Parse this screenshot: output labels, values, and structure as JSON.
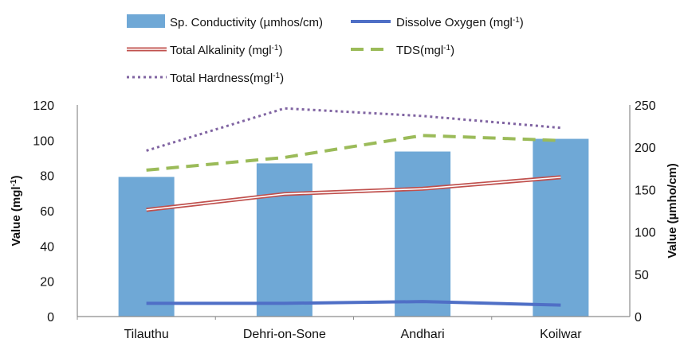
{
  "chart_data": {
    "type": "bar+line",
    "categories": [
      "Tilauthu",
      "Dehri-on-Sone",
      "Andhari",
      "Koilwar"
    ],
    "left_axis": {
      "label": "Value (mgl",
      "label_sup": "-1",
      "label_end": ")",
      "ylim": [
        0,
        120
      ],
      "ticks": [
        0,
        20,
        40,
        60,
        80,
        100,
        120
      ]
    },
    "right_axis": {
      "label": "Value (µmho/cm)",
      "ylim": [
        0,
        250
      ],
      "ticks": [
        0,
        50,
        100,
        150,
        200,
        250
      ]
    },
    "series": [
      {
        "name": "Sp. Conductivity (µmhos/cm)",
        "name_sup": "",
        "name_end": "",
        "type": "bar",
        "axis": "right",
        "color": "#6fa8d6",
        "values": [
          165,
          181,
          195,
          210
        ]
      },
      {
        "name": "Dissolve Oxygen (mgl",
        "name_sup": "-1",
        "name_end": ")",
        "type": "line",
        "axis": "left",
        "style": "solid",
        "color": "#4f6fc6",
        "values": [
          7.5,
          7.5,
          8.5,
          6.5
        ]
      },
      {
        "name": "Total Alkalinity  (mgl",
        "name_sup": "-1",
        "name_end": ")",
        "type": "line",
        "axis": "left",
        "style": "double",
        "color": "#c0504d",
        "values": [
          60.5,
          69.5,
          72.5,
          79
        ]
      },
      {
        "name": "TDS(mgl",
        "name_sup": "-1",
        "name_end": ")",
        "type": "line",
        "axis": "right",
        "style": "dashed",
        "color": "#9bbb59",
        "values": [
          173,
          188,
          214,
          208
        ]
      },
      {
        "name": "Total Hardness(mgl",
        "name_sup": "-1",
        "name_end": ")",
        "type": "line",
        "axis": "right",
        "style": "dotted",
        "color": "#8064a2",
        "values": [
          196,
          246,
          237,
          223
        ]
      }
    ],
    "grid": false,
    "legend_position": "top"
  }
}
